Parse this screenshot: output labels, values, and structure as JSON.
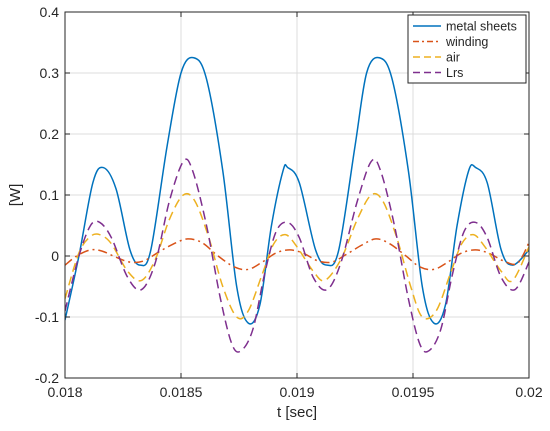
{
  "chart_data": {
    "type": "line",
    "title": "",
    "xlabel": "t [sec]",
    "ylabel": "[W]",
    "xlim": [
      0.018,
      0.02
    ],
    "ylim": [
      -0.2,
      0.4
    ],
    "x_ticks": [
      0.018,
      0.0185,
      0.019,
      0.0195,
      0.02
    ],
    "x_tick_labels": [
      "0.018",
      "0.0185",
      "0.019",
      "0.0195",
      "0.02"
    ],
    "y_ticks": [
      -0.2,
      -0.1,
      0,
      0.1,
      0.2,
      0.3,
      0.4
    ],
    "y_tick_labels": [
      "-0.2",
      "-0.1",
      "0",
      "0.1",
      "0.2",
      "0.3",
      "0.4"
    ],
    "grid": true,
    "legend_position": "top-right",
    "series": [
      {
        "name": "metal sheets",
        "color": "#0072BD",
        "dash": "solid",
        "points": [
          [
            0.018,
            -0.105
          ],
          [
            0.01806,
            0.0
          ],
          [
            0.01812,
            0.12
          ],
          [
            0.018165,
            0.145
          ],
          [
            0.01822,
            0.11
          ],
          [
            0.01828,
            0.01
          ],
          [
            0.018325,
            -0.015
          ],
          [
            0.01837,
            0.01
          ],
          [
            0.01844,
            0.18
          ],
          [
            0.0185,
            0.3
          ],
          [
            0.018555,
            0.325
          ],
          [
            0.01861,
            0.29
          ],
          [
            0.01868,
            0.14
          ],
          [
            0.01874,
            -0.05
          ],
          [
            0.01879,
            -0.11
          ],
          [
            0.01884,
            -0.08
          ],
          [
            0.01889,
            0.05
          ],
          [
            0.01894,
            0.14
          ],
          [
            0.01896,
            0.145
          ],
          [
            0.01901,
            0.12
          ],
          [
            0.01908,
            0.01
          ],
          [
            0.01913,
            -0.015
          ],
          [
            0.01918,
            0.01
          ],
          [
            0.01925,
            0.18
          ],
          [
            0.0193,
            0.3
          ],
          [
            0.019355,
            0.325
          ],
          [
            0.01941,
            0.29
          ],
          [
            0.01948,
            0.14
          ],
          [
            0.01954,
            -0.05
          ],
          [
            0.01959,
            -0.11
          ],
          [
            0.01964,
            -0.08
          ],
          [
            0.01969,
            0.05
          ],
          [
            0.01974,
            0.14
          ],
          [
            0.01977,
            0.145
          ],
          [
            0.01982,
            0.12
          ],
          [
            0.01988,
            0.01
          ],
          [
            0.01993,
            -0.015
          ],
          [
            0.02,
            0.01
          ]
        ]
      },
      {
        "name": "winding",
        "color": "#D95319",
        "dash": "dashdot",
        "points": [
          [
            0.018,
            -0.015
          ],
          [
            0.01805,
            0.0
          ],
          [
            0.01811,
            0.01
          ],
          [
            0.01816,
            0.008
          ],
          [
            0.01822,
            -0.002
          ],
          [
            0.01828,
            -0.01
          ],
          [
            0.01834,
            -0.008
          ],
          [
            0.01841,
            0.008
          ],
          [
            0.01848,
            0.022
          ],
          [
            0.01853,
            0.028
          ],
          [
            0.01859,
            0.022
          ],
          [
            0.01866,
            0.0
          ],
          [
            0.01873,
            -0.018
          ],
          [
            0.01879,
            -0.022
          ],
          [
            0.01885,
            -0.01
          ],
          [
            0.01891,
            0.005
          ],
          [
            0.01897,
            0.01
          ],
          [
            0.01903,
            0.004
          ],
          [
            0.01909,
            -0.008
          ],
          [
            0.01915,
            -0.01
          ],
          [
            0.01921,
            0.002
          ],
          [
            0.01928,
            0.018
          ],
          [
            0.01934,
            0.028
          ],
          [
            0.0194,
            0.02
          ],
          [
            0.01947,
            0.0
          ],
          [
            0.01953,
            -0.018
          ],
          [
            0.01959,
            -0.022
          ],
          [
            0.01965,
            -0.01
          ],
          [
            0.01971,
            0.005
          ],
          [
            0.01977,
            0.01
          ],
          [
            0.01983,
            0.004
          ],
          [
            0.01989,
            -0.008
          ],
          [
            0.01995,
            -0.012
          ],
          [
            0.02,
            0.022
          ]
        ]
      },
      {
        "name": "air",
        "color": "#EDB120",
        "dash": "dashed",
        "points": [
          [
            0.018,
            -0.07
          ],
          [
            0.01806,
            0.005
          ],
          [
            0.01811,
            0.032
          ],
          [
            0.01815,
            0.035
          ],
          [
            0.0182,
            0.02
          ],
          [
            0.01827,
            -0.025
          ],
          [
            0.01833,
            -0.04
          ],
          [
            0.01839,
            -0.005
          ],
          [
            0.01845,
            0.06
          ],
          [
            0.01851,
            0.1
          ],
          [
            0.01856,
            0.09
          ],
          [
            0.01862,
            0.03
          ],
          [
            0.01868,
            -0.05
          ],
          [
            0.01874,
            -0.1
          ],
          [
            0.01879,
            -0.09
          ],
          [
            0.01885,
            -0.03
          ],
          [
            0.0189,
            0.02
          ],
          [
            0.01895,
            0.035
          ],
          [
            0.019,
            0.015
          ],
          [
            0.01907,
            -0.025
          ],
          [
            0.01912,
            -0.04
          ],
          [
            0.01919,
            -0.005
          ],
          [
            0.01926,
            0.06
          ],
          [
            0.01932,
            0.1
          ],
          [
            0.01937,
            0.09
          ],
          [
            0.01943,
            0.03
          ],
          [
            0.01949,
            -0.05
          ],
          [
            0.01954,
            -0.1
          ],
          [
            0.0196,
            -0.09
          ],
          [
            0.01966,
            -0.03
          ],
          [
            0.01971,
            0.02
          ],
          [
            0.01976,
            0.035
          ],
          [
            0.01981,
            0.015
          ],
          [
            0.01988,
            -0.025
          ],
          [
            0.01993,
            -0.04
          ],
          [
            0.02,
            0.015
          ]
        ]
      },
      {
        "name": "Lrs",
        "color": "#7E2F8E",
        "dash": "dashed",
        "points": [
          [
            0.018,
            -0.09
          ],
          [
            0.01806,
            0.0
          ],
          [
            0.01811,
            0.05
          ],
          [
            0.01815,
            0.055
          ],
          [
            0.0182,
            0.03
          ],
          [
            0.01827,
            -0.035
          ],
          [
            0.01833,
            -0.055
          ],
          [
            0.01839,
            -0.01
          ],
          [
            0.01845,
            0.09
          ],
          [
            0.01851,
            0.155
          ],
          [
            0.01855,
            0.14
          ],
          [
            0.01861,
            0.05
          ],
          [
            0.01867,
            -0.07
          ],
          [
            0.01872,
            -0.145
          ],
          [
            0.01876,
            -0.155
          ],
          [
            0.01881,
            -0.12
          ],
          [
            0.01886,
            -0.03
          ],
          [
            0.01891,
            0.04
          ],
          [
            0.01896,
            0.055
          ],
          [
            0.01901,
            0.03
          ],
          [
            0.01907,
            -0.035
          ],
          [
            0.01913,
            -0.055
          ],
          [
            0.01919,
            -0.01
          ],
          [
            0.01926,
            0.09
          ],
          [
            0.01932,
            0.155
          ],
          [
            0.01936,
            0.14
          ],
          [
            0.01942,
            0.05
          ],
          [
            0.01948,
            -0.07
          ],
          [
            0.01953,
            -0.145
          ],
          [
            0.01957,
            -0.155
          ],
          [
            0.01962,
            -0.12
          ],
          [
            0.01967,
            -0.03
          ],
          [
            0.01972,
            0.04
          ],
          [
            0.01977,
            0.055
          ],
          [
            0.01982,
            0.03
          ],
          [
            0.01988,
            -0.035
          ],
          [
            0.01994,
            -0.055
          ],
          [
            0.02,
            -0.01
          ]
        ]
      }
    ]
  }
}
